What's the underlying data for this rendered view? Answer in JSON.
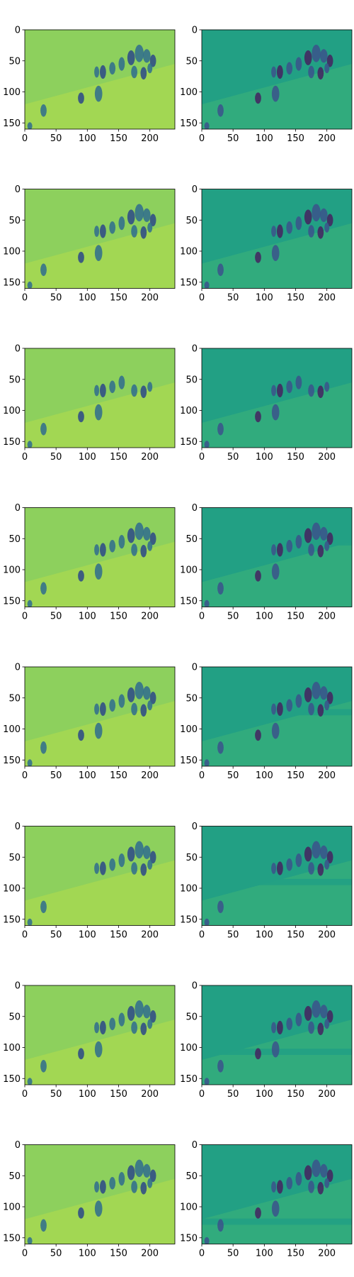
{
  "figure": {
    "rows": 8,
    "cols": 2,
    "colormap": "viridis",
    "axes": {
      "x_ticks": [
        "0",
        "50",
        "100",
        "150",
        "200"
      ],
      "x_tick_values": [
        0,
        50,
        100,
        150,
        200
      ],
      "y_ticks": [
        "0",
        "50",
        "100",
        "150"
      ],
      "y_tick_values": [
        0,
        50,
        100,
        150
      ],
      "x_range": [
        0,
        240
      ],
      "y_range": [
        0,
        160
      ]
    },
    "panels_left": {
      "kind": "reconstruction",
      "background_color": "#8dd05d",
      "light_patch_color": "#b5dd4b",
      "figure_color": "#2f6c8e",
      "figure_dark_color": "#2c4888"
    },
    "panels_right": {
      "kind": "residual",
      "background_color": "#22a084",
      "light_patch_color": "#4cbf70",
      "figure_color": "#3b528b",
      "figure_dark_color": "#44225f"
    }
  },
  "chart_data": {
    "type": "heatmap",
    "grid": "8 rows x 2 columns of image panels",
    "x_ticks": [
      0,
      50,
      100,
      150,
      200
    ],
    "y_ticks": [
      0,
      50,
      100,
      150
    ],
    "x_range": [
      0,
      240
    ],
    "y_range": [
      160,
      0
    ]
  }
}
